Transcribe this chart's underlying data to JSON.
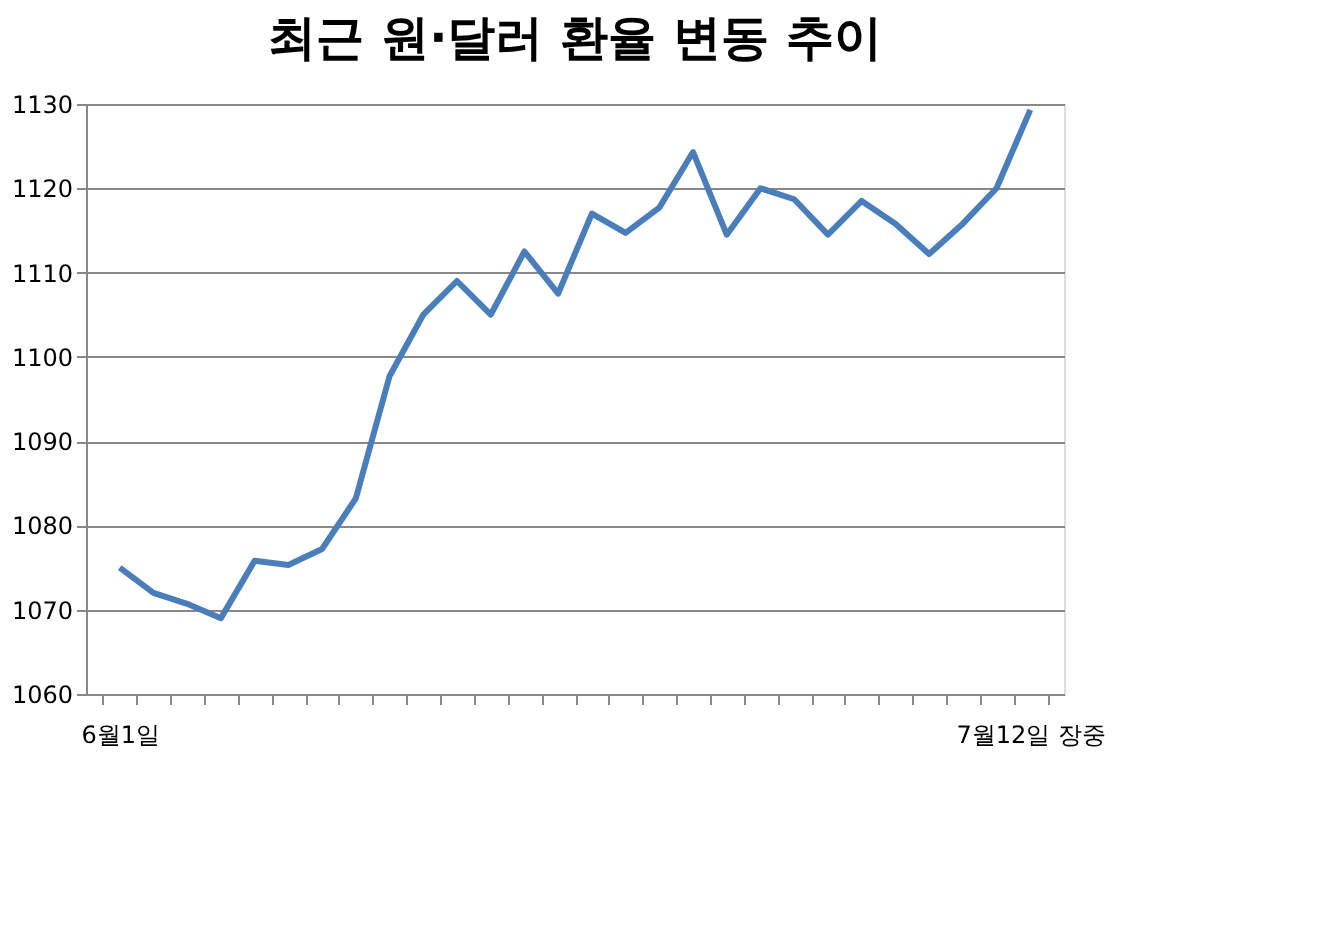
{
  "chart_data": {
    "type": "line",
    "title": "최근 원·달러 환율 변동 추이",
    "categories": [
      "6월1일",
      null,
      null,
      null,
      null,
      null,
      null,
      null,
      null,
      null,
      null,
      null,
      null,
      null,
      null,
      null,
      null,
      null,
      null,
      null,
      null,
      null,
      null,
      null,
      null,
      null,
      null,
      "7월12일 장중"
    ],
    "series": [
      {
        "color": "#4a7ebb",
        "values": [
          1075,
          1072,
          1070.7,
          1069,
          1075.8,
          1075.3,
          1077.2,
          1083.2,
          1097.7,
          1105,
          1109,
          1105,
          1112.5,
          1107.5,
          1117,
          1114.7,
          1117.7,
          1124.3,
          1114.5,
          1120,
          1118.7,
          1114.5,
          1118.5,
          1115.8,
          1112.2,
          1115.8,
          1120,
          1129.3
        ]
      }
    ],
    "ylim": [
      1060,
      1130
    ],
    "yticks": [
      1060,
      1070,
      1080,
      1090,
      1100,
      1110,
      1120,
      1130
    ],
    "grid": "y",
    "line_style": "solid",
    "marker": "none"
  }
}
